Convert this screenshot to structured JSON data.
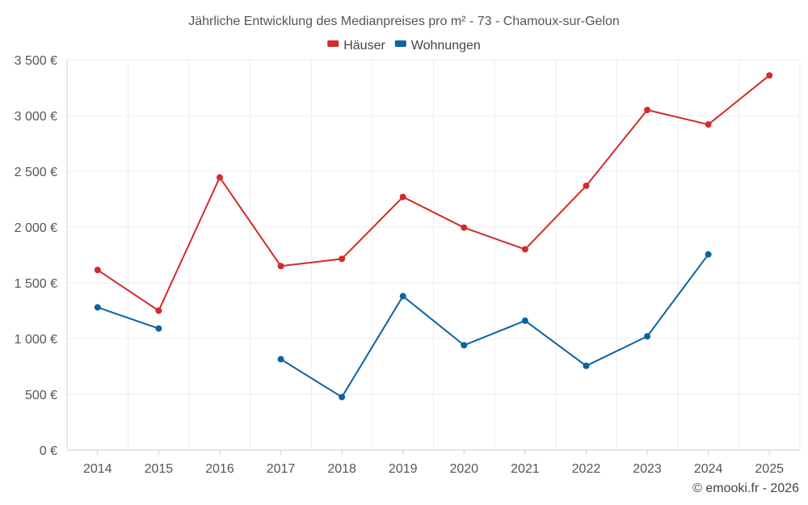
{
  "chart_data": {
    "type": "line",
    "title": "Jährliche Entwicklung des Medianpreises pro m² - 73 - Chamoux-sur-Gelon",
    "categories": [
      "2014",
      "2015",
      "2016",
      "2017",
      "2018",
      "2019",
      "2020",
      "2021",
      "2022",
      "2023",
      "2024",
      "2025"
    ],
    "y_ticks": [
      "0 €",
      "500 €",
      "1 000 €",
      "1 500 €",
      "2 000 €",
      "2 500 €",
      "3 000 €",
      "3 500 €"
    ],
    "ylim": [
      0,
      3500
    ],
    "ytick_step": 500,
    "grid": true,
    "legend_position": "top-center",
    "series": [
      {
        "name": "Häuser",
        "color": "#d42a2a",
        "values": [
          1615,
          1250,
          2445,
          1650,
          1715,
          2270,
          1995,
          1800,
          2370,
          3050,
          2920,
          3360
        ]
      },
      {
        "name": "Wohnungen",
        "color": "#0a64a0",
        "values": [
          1280,
          1090,
          null,
          815,
          475,
          1380,
          940,
          1160,
          755,
          1020,
          1755,
          null
        ]
      }
    ],
    "credit": "© emooki.fr - 2026"
  }
}
